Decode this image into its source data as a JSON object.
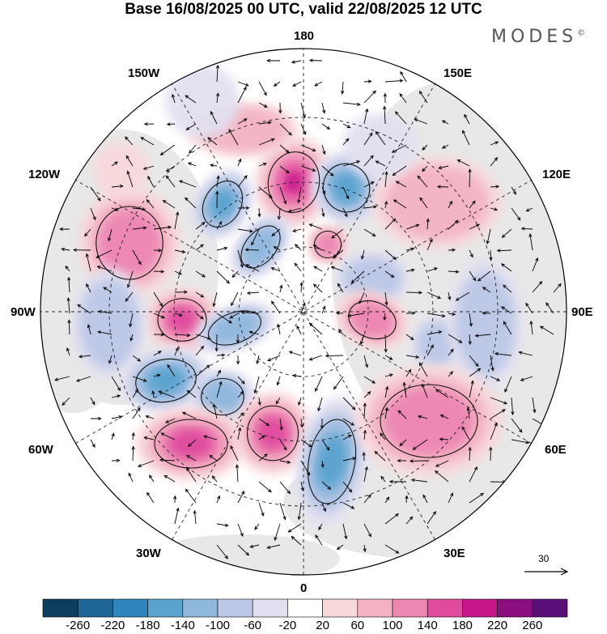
{
  "title": "Base 16/08/2025 00 UTC, valid 22/08/2025 12 UTC",
  "brand": "MODES",
  "brand_mark": "©",
  "longitude_labels": {
    "top": "180",
    "bottom": "0",
    "left": "90W",
    "right": "90E",
    "upper_left_150": "150W",
    "upper_right_150": "150E",
    "upper_left_120": "120W",
    "upper_right_120": "120E",
    "lower_left_60": "60W",
    "lower_right_60": "60E",
    "lower_left_30": "30W",
    "lower_right_30": "30E"
  },
  "vector_scale": {
    "label": "30"
  },
  "colorbar": {
    "ticks": [
      "-260",
      "-220",
      "-180",
      "-140",
      "-100",
      "-60",
      "-20",
      "20",
      "60",
      "100",
      "140",
      "180",
      "220",
      "260"
    ],
    "colors": [
      "#0f3d5e",
      "#1d6594",
      "#2f86bd",
      "#5aa3cf",
      "#8fb8dd",
      "#bcc8e6",
      "#e2e0f0",
      "#ffffff",
      "#f8d8db",
      "#f3b3c3",
      "#ec86b2",
      "#e04b9e",
      "#c5168a",
      "#8c0f80",
      "#5b0f78"
    ]
  },
  "anomaly_colors": {
    "pos": [
      "#f8d8db",
      "#f3b3c3",
      "#ec86b2",
      "#e04b9e",
      "#c5168a"
    ],
    "neg": [
      "#e2e0f0",
      "#bcc8e6",
      "#8fb8dd",
      "#5aa3cf",
      "#2f86bd"
    ]
  }
}
